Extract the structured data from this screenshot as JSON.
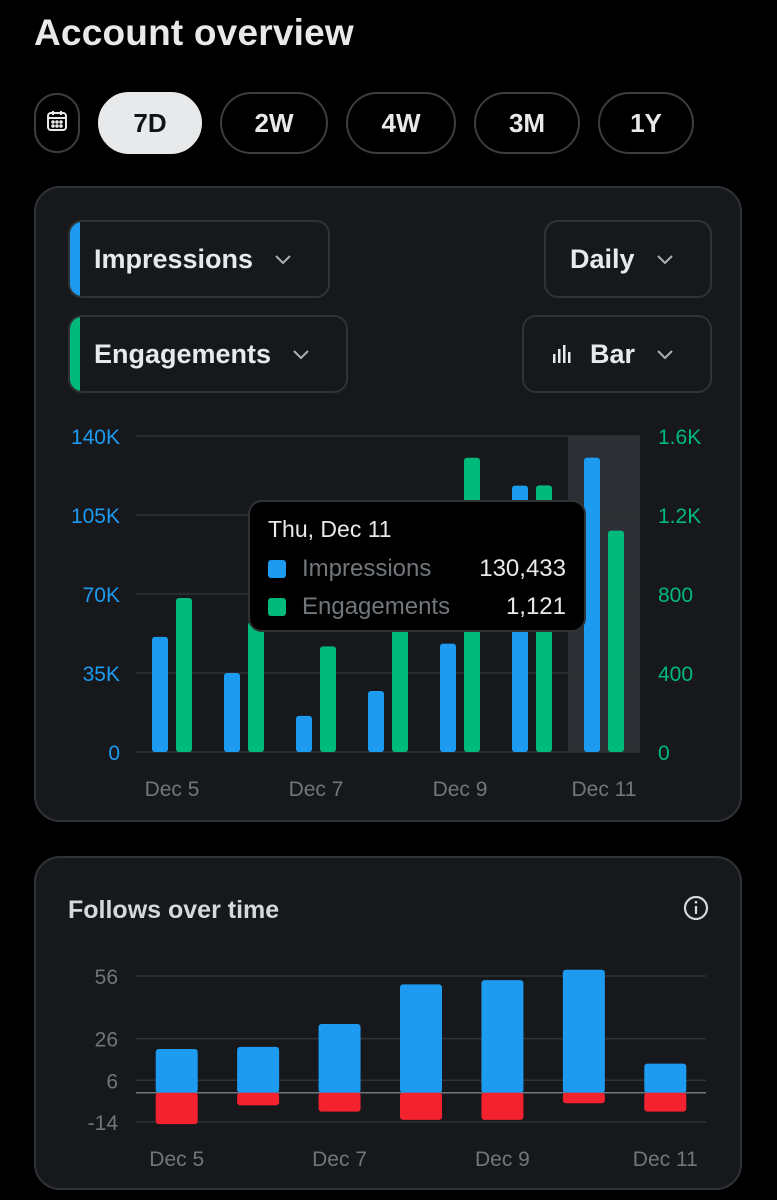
{
  "page": {
    "title": "Account overview"
  },
  "ranges": {
    "calendar_icon": "calendar-icon",
    "options": [
      "7D",
      "2W",
      "4W",
      "3M",
      "1Y"
    ],
    "selected": "7D"
  },
  "main_chart": {
    "metric1": {
      "label": "Impressions",
      "color": "#1d9bf0"
    },
    "metric2": {
      "label": "Engagements",
      "color": "#00ba7c"
    },
    "interval": "Daily",
    "chart_type": "Bar",
    "tooltip": {
      "date": "Thu, Dec 11",
      "rows": [
        {
          "name": "Impressions",
          "value": "130,433",
          "color": "#1d9bf0"
        },
        {
          "name": "Engagements",
          "value": "1,121",
          "color": "#00ba7c"
        }
      ]
    }
  },
  "follows": {
    "title": "Follows over time",
    "info_icon": "info-icon"
  },
  "chart_data": [
    {
      "type": "bar",
      "categories": [
        "Dec 5",
        "Dec 6",
        "Dec 7",
        "Dec 8",
        "Dec 9",
        "Dec 10",
        "Dec 11"
      ],
      "x_tick_labels": [
        "Dec 5",
        "Dec 7",
        "Dec 9",
        "Dec 11"
      ],
      "highlighted_category": "Dec 11",
      "series": [
        {
          "name": "Impressions",
          "axis": "left",
          "color": "#1d9bf0",
          "values": [
            51000,
            35000,
            16000,
            27000,
            48000,
            118000,
            130433
          ]
        },
        {
          "name": "Engagements",
          "axis": "right",
          "color": "#00ba7c",
          "values": [
            780,
            660,
            535,
            655,
            1490,
            1350,
            1121
          ]
        }
      ],
      "y_left": {
        "min": 0,
        "max": 140000,
        "ticks": [
          0,
          35000,
          70000,
          105000,
          140000
        ],
        "tick_labels": [
          "0",
          "35K",
          "70K",
          "105K",
          "140K"
        ],
        "color": "#1d9bf0"
      },
      "y_right": {
        "min": 0,
        "max": 1600,
        "ticks": [
          0,
          400,
          800,
          1200,
          1600
        ],
        "tick_labels": [
          "0",
          "400",
          "800",
          "1.2K",
          "1.6K"
        ],
        "color": "#00ba7c"
      },
      "grid": true
    },
    {
      "type": "bar",
      "stacked": "diverging",
      "categories": [
        "Dec 5",
        "Dec 6",
        "Dec 7",
        "Dec 8",
        "Dec 9",
        "Dec 10",
        "Dec 11"
      ],
      "x_tick_labels": [
        "Dec 5",
        "Dec 7",
        "Dec 9",
        "Dec 11"
      ],
      "series": [
        {
          "color": "#1d9bf0",
          "values": [
            21,
            22,
            33,
            52,
            54,
            59,
            14
          ]
        },
        {
          "color": "#f4212e",
          "values": [
            -15,
            -6,
            -9,
            -13,
            -13,
            -5,
            -9
          ]
        }
      ],
      "y": {
        "min": -14,
        "max": 56,
        "ticks": [
          -14,
          6,
          26,
          56
        ],
        "tick_labels": [
          "-14",
          "6",
          "26",
          "56"
        ]
      },
      "grid": true
    }
  ]
}
